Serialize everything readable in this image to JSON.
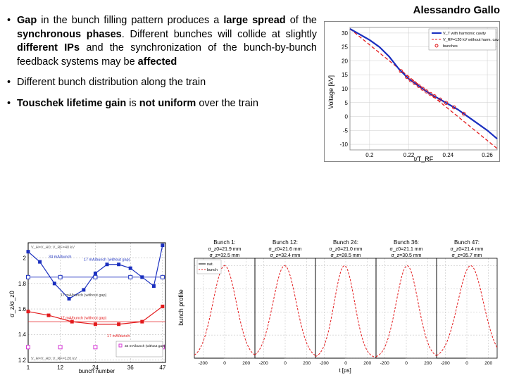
{
  "author": "Alessandro Gallo",
  "bullets": {
    "b1_parts": {
      "p1": "Gap",
      "p2": " in the bunch filling pattern produces a ",
      "p3": "large spread",
      "p4": " of the ",
      "p5": "synchronous phases",
      "p6": ". Different bunches will collide at slightly ",
      "p7": "different IPs",
      "p8": " and the synchronization of the bunch-by-bunch feedback systems may be ",
      "p9": "affected"
    },
    "b2": "Different bunch distribution along the train",
    "b3_parts": {
      "p1": "Touschek lifetime gain",
      "p2": " is ",
      "p3": "not uniform",
      "p4": " over the train"
    }
  },
  "top_chart": {
    "ylabel": "Voltage [kV]",
    "xlabel": "t/T_RF",
    "xlim": [
      0.19,
      0.265
    ],
    "ylim": [
      -12,
      32
    ],
    "xticks": [
      "0.2",
      "0.22",
      "0.24",
      "0.26"
    ],
    "yticks": [
      "-10",
      "-5",
      "0",
      "5",
      "10",
      "15",
      "20",
      "25",
      "30"
    ],
    "legend": {
      "l1": "V_T with harmonic cavity",
      "l2": "V_RF=120 kV without harm. cav.",
      "l3": "bunches"
    },
    "colors": {
      "blue": "#1a2fbf",
      "red": "#e31a1c",
      "border": "#999999",
      "grid": "#cccccc"
    },
    "blue_curve": [
      [
        0.19,
        31.5
      ],
      [
        0.195,
        29.5
      ],
      [
        0.2,
        27.5
      ],
      [
        0.205,
        25
      ],
      [
        0.21,
        21.5
      ],
      [
        0.215,
        17
      ],
      [
        0.22,
        13.5
      ],
      [
        0.225,
        11
      ],
      [
        0.23,
        8.5
      ],
      [
        0.235,
        6.5
      ],
      [
        0.24,
        4.5
      ],
      [
        0.245,
        2.5
      ],
      [
        0.25,
        0
      ],
      [
        0.255,
        -2.5
      ],
      [
        0.26,
        -5
      ],
      [
        0.265,
        -8
      ]
    ],
    "red_line": [
      [
        0.19,
        31.5
      ],
      [
        0.265,
        -11.5
      ]
    ],
    "bunches_x": [
      0.216,
      0.219,
      0.221,
      0.223,
      0.225,
      0.227,
      0.229,
      0.231,
      0.233,
      0.236,
      0.239,
      0.243,
      0.248
    ]
  },
  "bl_chart": {
    "ylabel": "σ_z/σ_z0",
    "xlabel": "bunch number",
    "xlim": [
      1,
      48
    ],
    "ylim": [
      1.18,
      2.12
    ],
    "xticks": [
      "1",
      "12",
      "24",
      "36",
      "47"
    ],
    "yticks": [
      "1.2",
      "1.4",
      "1.6",
      "1.8",
      "2"
    ],
    "colors": {
      "blue": "#1a2fbf",
      "red": "#e31a1c",
      "magenta": "#d63ad6",
      "grid": "#aaaaaa",
      "border": "#000000"
    },
    "annotations": {
      "a1": "V_H=V_H0; V_RF=40 kV",
      "a2": "34 mA/bunch",
      "a3": "17 mA/bunch (without gap)",
      "a4": "17 mA/bunch (without gap)",
      "a5": "17 mA/bunch (without gap)",
      "a6": "17 mA/bunch",
      "a7": "34 mA/bunch (without gap)",
      "a8": "V_H=V_H0; V_RF=120 kV"
    },
    "blue_sq": [
      [
        1,
        2.05
      ],
      [
        5,
        1.97
      ],
      [
        10,
        1.8
      ],
      [
        15,
        1.68
      ],
      [
        20,
        1.75
      ],
      [
        24,
        1.88
      ],
      [
        28,
        1.95
      ],
      [
        32,
        1.95
      ],
      [
        36,
        1.92
      ],
      [
        40,
        1.85
      ],
      [
        44,
        1.78
      ],
      [
        47,
        2.1
      ]
    ],
    "blue_open": [
      [
        1,
        1.85
      ],
      [
        12,
        1.85
      ],
      [
        24,
        1.85
      ],
      [
        36,
        1.85
      ],
      [
        47,
        1.85
      ]
    ],
    "red_sq": [
      [
        1,
        1.58
      ],
      [
        8,
        1.55
      ],
      [
        16,
        1.5
      ],
      [
        24,
        1.48
      ],
      [
        32,
        1.48
      ],
      [
        40,
        1.5
      ],
      [
        47,
        1.62
      ]
    ],
    "mag_open": [
      [
        1,
        1.3
      ],
      [
        12,
        1.3
      ],
      [
        24,
        1.3
      ],
      [
        36,
        1.3
      ],
      [
        47,
        1.3
      ]
    ],
    "red_line_y": 1.5,
    "blue_line_y": 1.85
  },
  "br_chart": {
    "ylabel": "bunch profile",
    "xlabel": "t [ps]",
    "xlim": [
      -280,
      280
    ],
    "ylim": [
      0,
      1.08
    ],
    "xticks": [
      "-200",
      "0",
      "200"
    ],
    "panels": [
      {
        "title": "Bunch 1:",
        "s1": "σ_z0=21.9 mm",
        "s2": "σ_z=32.5 mm",
        "shift": 0
      },
      {
        "title": "Bunch 12:",
        "s1": "σ_z0=21.6 mm",
        "s2": "σ_z=32.4 mm",
        "shift": -5
      },
      {
        "title": "Bunch 24:",
        "s1": "σ_z0=21.0 mm",
        "s2": "σ_z=28.5 mm",
        "shift": -12
      },
      {
        "title": "Bunch 36:",
        "s1": "σ_z0=21.1 mm",
        "s2": "σ_z=30.5 mm",
        "shift": 8
      },
      {
        "title": "Bunch 47:",
        "s1": "σ_z0=21.4 mm",
        "s2": "σ_z=35.7 mm",
        "shift": 35
      }
    ],
    "legend": {
      "l1": "nat.",
      "l2": "bunch"
    },
    "colors": {
      "black": "#000000",
      "red": "#e31a1c",
      "grid": "#aaaaaa",
      "border": "#000000"
    }
  }
}
